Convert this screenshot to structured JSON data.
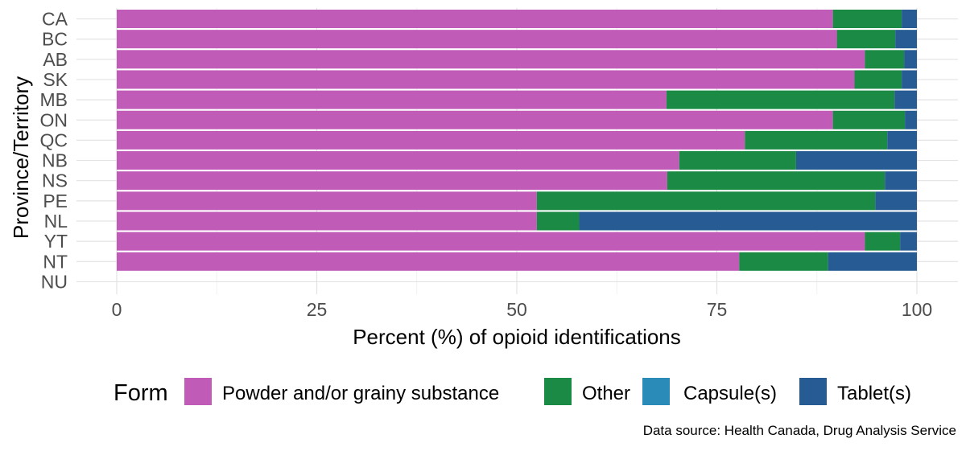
{
  "chart_data": {
    "type": "bar",
    "orientation": "horizontal",
    "stacked": true,
    "categories": [
      "CA",
      "BC",
      "AB",
      "SK",
      "MB",
      "ON",
      "QC",
      "NB",
      "NS",
      "PE",
      "NL",
      "YT",
      "NT",
      "NU"
    ],
    "series": [
      {
        "name": "Powder and/or grainy substance",
        "color": "#C05BB8",
        "values": [
          89.5,
          90.0,
          93.5,
          92.2,
          68.7,
          89.5,
          78.5,
          70.3,
          68.8,
          52.5,
          52.5,
          93.5,
          77.8,
          0
        ]
      },
      {
        "name": "Other",
        "color": "#1A8A45",
        "values": [
          8.6,
          7.3,
          4.9,
          5.9,
          28.5,
          9.0,
          17.8,
          14.6,
          27.2,
          42.3,
          5.3,
          4.4,
          11.1,
          0
        ]
      },
      {
        "name": "Capsule(s)",
        "color": "#2A8AB8",
        "values": [
          0,
          0,
          0,
          0,
          0,
          0,
          0,
          0,
          0,
          0,
          0,
          0,
          0,
          0
        ]
      },
      {
        "name": "Tablet(s)",
        "color": "#265B93",
        "values": [
          1.9,
          2.7,
          1.6,
          1.9,
          2.8,
          1.5,
          3.7,
          15.1,
          4.0,
          5.2,
          42.2,
          2.1,
          11.1,
          0
        ]
      }
    ],
    "xlabel": "Percent (%) of opioid identifications",
    "ylabel": "Province/Territory",
    "xlim": [
      0,
      100
    ],
    "xticks": [
      "0",
      "25",
      "50",
      "75",
      "100"
    ],
    "legend_title": "Form",
    "legend_position": "bottom",
    "grid": true
  },
  "source": "Data source: Health Canada, Drug Analysis Service"
}
